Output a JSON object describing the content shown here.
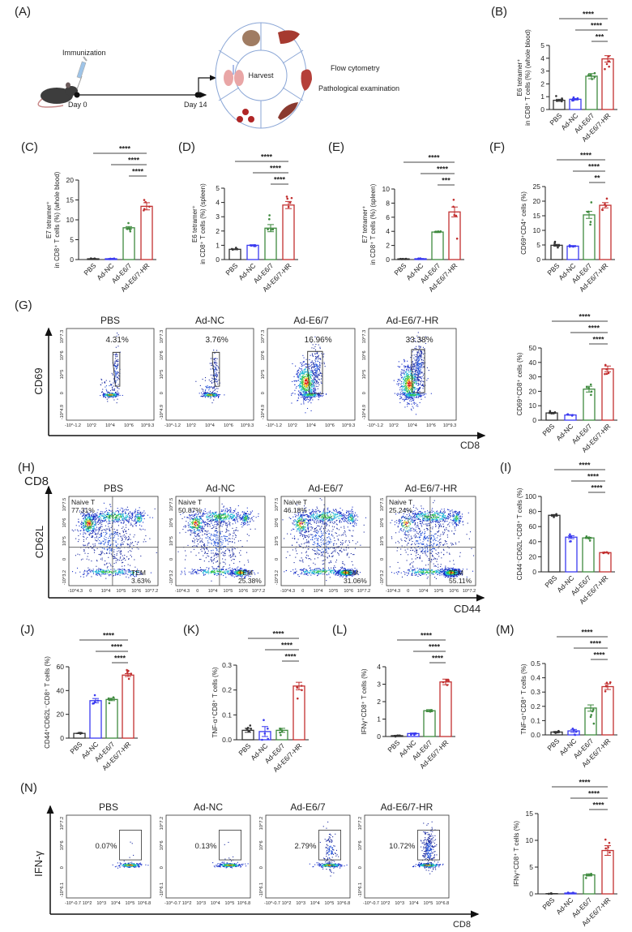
{
  "panel_labels": {
    "A": "(A)",
    "B": "(B)",
    "C": "(C)",
    "D": "(D)",
    "E": "(E)",
    "F": "(F)",
    "G": "(G)",
    "H": "(H)",
    "I": "(I)",
    "J": "(J)",
    "K": "(K)",
    "L": "(L)",
    "M": "(M)",
    "N": "(N)"
  },
  "schematic": {
    "immunization": "Immunization",
    "day0": "Day 0",
    "day14": "Day 14",
    "harvest": "Harvest",
    "outputs": [
      "Flow cytometry",
      "Pathological examination"
    ],
    "organ_icons": [
      "kidney-icon",
      "liver-icon",
      "heart-icon",
      "spleen-icon",
      "blood-drops-icon",
      "lung-icon",
      "mouse-icon",
      "syringe-icon"
    ]
  },
  "colors": {
    "PBS": "#333333",
    "Ad-NC": "#3a3af0",
    "Ad-E6/7": "#3f8a3f",
    "Ad-E6/7-HR": "#c23030"
  },
  "flow": {
    "G": {
      "ylabel": "CD69",
      "xlabel": "CD8",
      "titles": [
        "PBS",
        "Ad-NC",
        "Ad-E6/7",
        "Ad-E6/7-HR"
      ],
      "percents": [
        "4.31%",
        "3.76%",
        "16.96%",
        "33.38%"
      ],
      "xticks": [
        "-10^-1.2",
        "10^2",
        "10^4",
        "10^6",
        "10^9.3"
      ],
      "yticks": [
        "-10^4.9",
        "0",
        "10^5",
        "10^6",
        "10^7.3"
      ]
    },
    "H": {
      "top_label": "CD8",
      "ylabel": "CD62L",
      "xlabel": "CD44",
      "titles": [
        "PBS",
        "Ad-NC",
        "Ad-E6/7",
        "Ad-E6/7-HR"
      ],
      "naive_label": "Naive T",
      "tem_label": "TEM",
      "naive_percents": [
        "77.31%",
        "50.87%",
        "46.18%",
        "25.24%"
      ],
      "tem_percents": [
        "3.63%",
        "25.38%",
        "31.06%",
        "55.11%"
      ],
      "xticks": [
        "-10^4.3",
        "0",
        "10^4",
        "10^5",
        "10^6",
        "10^7.2"
      ],
      "yticks": [
        "-10^3.2",
        "0",
        "10^5",
        "10^6",
        "10^7.5"
      ]
    },
    "N": {
      "ylabel": "IFN-γ",
      "xlabel": "CD8",
      "titles": [
        "PBS",
        "Ad-NC",
        "Ad-E6/7",
        "Ad-E6/7-HR"
      ],
      "percents": [
        "0.07%",
        "0.13%",
        "2.79%",
        "10.72%"
      ],
      "xticks": [
        "-10^-0.7",
        "10^2",
        "10^3",
        "10^4",
        "10^5",
        "10^6.8"
      ],
      "yticks": [
        "-10^6.1",
        "0",
        "10^6",
        "10^7.2"
      ]
    }
  },
  "chart_data": [
    {
      "panel": "B",
      "type": "bar",
      "ylabel": [
        "E6 tetramer⁺",
        "in CD8⁺ T cells (%) (whole blood)"
      ],
      "ylim": [
        0,
        5
      ],
      "yticks": [
        "0",
        "1",
        "2",
        "3",
        "4",
        "5"
      ],
      "categories": [
        "PBS",
        "Ad-NC",
        "Ad-E6/7",
        "Ad-E6/7-HR"
      ],
      "values": [
        0.72,
        0.8,
        2.6,
        3.95
      ],
      "sem": [
        0.08,
        0.06,
        0.2,
        0.25
      ],
      "significance": [
        {
          "from": 0,
          "to": 3,
          "label": "****"
        },
        {
          "from": 1,
          "to": 3,
          "label": "****"
        },
        {
          "from": 2,
          "to": 3,
          "label": "***"
        }
      ]
    },
    {
      "panel": "C",
      "type": "bar",
      "ylabel": [
        "E7 tetramer⁺",
        "in CD8⁺ T cells (%) (whole blood)"
      ],
      "ylim": [
        0,
        20
      ],
      "yticks": [
        "0",
        "5",
        "10",
        "15",
        "20"
      ],
      "categories": [
        "PBS",
        "Ad-NC",
        "Ad-E6/7",
        "Ad-E6/7-HR"
      ],
      "values": [
        0.2,
        0.2,
        8.0,
        13.4
      ],
      "sem": [
        0.05,
        0.05,
        0.3,
        0.9
      ],
      "significance": [
        {
          "from": 0,
          "to": 3,
          "label": "****"
        },
        {
          "from": 1,
          "to": 3,
          "label": "****"
        },
        {
          "from": 2,
          "to": 3,
          "label": "****"
        }
      ]
    },
    {
      "panel": "D",
      "type": "bar",
      "ylabel": [
        "E6 tetramer⁺",
        "in CD8⁺ T cells (%) (spleen)"
      ],
      "ylim": [
        0,
        5
      ],
      "yticks": [
        "0",
        "1",
        "2",
        "3",
        "4",
        "5"
      ],
      "categories": [
        "PBS",
        "Ad-NC",
        "Ad-E6/7",
        "Ad-E6/7-HR"
      ],
      "values": [
        0.72,
        1.0,
        2.2,
        3.82
      ],
      "sem": [
        0.03,
        0.04,
        0.25,
        0.25
      ],
      "significance": [
        {
          "from": 0,
          "to": 3,
          "label": "****"
        },
        {
          "from": 1,
          "to": 3,
          "label": "****"
        },
        {
          "from": 2,
          "to": 3,
          "label": "****"
        }
      ]
    },
    {
      "panel": "E",
      "type": "bar",
      "ylabel": [
        "E7 tetramer⁺",
        "in CD8⁺ T cells (%) (spleen)"
      ],
      "ylim": [
        0,
        10
      ],
      "yticks": [
        "0",
        "2",
        "4",
        "6",
        "8",
        "10"
      ],
      "categories": [
        "PBS",
        "Ad-NC",
        "Ad-E6/7",
        "Ad-E6/7-HR"
      ],
      "values": [
        0.1,
        0.12,
        3.9,
        6.75
      ],
      "sem": [
        0.02,
        0.03,
        0.08,
        0.7
      ],
      "significance": [
        {
          "from": 0,
          "to": 3,
          "label": "****"
        },
        {
          "from": 1,
          "to": 3,
          "label": "****"
        },
        {
          "from": 2,
          "to": 3,
          "label": "***"
        }
      ]
    },
    {
      "panel": "F",
      "type": "bar",
      "ylabel": [
        "CD69⁺CD4⁺ cells (%)"
      ],
      "ylim": [
        0,
        25
      ],
      "yticks": [
        "0",
        "5",
        "10",
        "15",
        "20",
        "25"
      ],
      "categories": [
        "PBS",
        "Ad-NC",
        "Ad-E6/7",
        "Ad-E6/7-HR"
      ],
      "values": [
        4.9,
        4.6,
        15.3,
        18.6
      ],
      "sem": [
        0.3,
        0.2,
        1.2,
        0.9
      ],
      "significance": [
        {
          "from": 0,
          "to": 3,
          "label": "****"
        },
        {
          "from": 1,
          "to": 3,
          "label": "****"
        },
        {
          "from": 2,
          "to": 3,
          "label": "**"
        }
      ]
    },
    {
      "panel": "G",
      "type": "bar",
      "ylabel": [
        "CD69⁺CD8⁺ cells (%)"
      ],
      "ylim": [
        0,
        50
      ],
      "yticks": [
        "0",
        "10",
        "20",
        "30",
        "40",
        "50"
      ],
      "categories": [
        "PBS",
        "Ad-NC",
        "Ad-E6/7",
        "Ad-E6/7-HR"
      ],
      "values": [
        5.0,
        3.6,
        21.5,
        35.5
      ],
      "sem": [
        0.4,
        0.2,
        2.0,
        2.0
      ],
      "significance": [
        {
          "from": 0,
          "to": 3,
          "label": "****"
        },
        {
          "from": 1,
          "to": 3,
          "label": "****"
        },
        {
          "from": 2,
          "to": 3,
          "label": "****"
        }
      ]
    },
    {
      "panel": "I",
      "type": "bar",
      "ylabel": [
        "CD44⁻CD62L⁺CD8⁺ T cells (%)"
      ],
      "ylim": [
        0,
        100
      ],
      "yticks": [
        "0",
        "20",
        "40",
        "60",
        "80",
        "100"
      ],
      "categories": [
        "PBS",
        "Ad-NC",
        "Ad-E6/7",
        "Ad-E6/7-HR"
      ],
      "values": [
        75,
        46,
        45,
        25.5
      ],
      "sem": [
        1.0,
        2.0,
        0.8,
        0.5
      ],
      "significance": [
        {
          "from": 0,
          "to": 3,
          "label": "****"
        },
        {
          "from": 1,
          "to": 3,
          "label": "****"
        },
        {
          "from": 2,
          "to": 3,
          "label": "****"
        }
      ]
    },
    {
      "panel": "J",
      "type": "bar",
      "ylabel": [
        "CD44⁺CD62L⁻CD8⁺ T cells (%)"
      ],
      "ylim": [
        0,
        60
      ],
      "yticks": [
        "0",
        "20",
        "40",
        "60"
      ],
      "categories": [
        "PBS",
        "Ad-NC",
        "Ad-E6/7",
        "Ad-E6/7-HR"
      ],
      "values": [
        4,
        31.5,
        32.5,
        53
      ],
      "sem": [
        0.2,
        1.8,
        1.0,
        1.2
      ],
      "significance": [
        {
          "from": 0,
          "to": 3,
          "label": "****"
        },
        {
          "from": 1,
          "to": 3,
          "label": "****"
        },
        {
          "from": 2,
          "to": 3,
          "label": "****"
        }
      ]
    },
    {
      "panel": "K",
      "type": "bar",
      "ylabel": [
        "TNF-α⁺CD8⁺ T cells (%)"
      ],
      "ylim": [
        0,
        0.3
      ],
      "yticks": [
        "0.0",
        "0.1",
        "0.2",
        "0.3"
      ],
      "categories": [
        "PBS",
        "Ad-NC",
        "Ad-E6/7",
        "Ad-E6/7-HR"
      ],
      "values": [
        0.038,
        0.033,
        0.038,
        0.216
      ],
      "sem": [
        0.008,
        0.02,
        0.008,
        0.015
      ],
      "significance": [
        {
          "from": 0,
          "to": 3,
          "label": "****"
        },
        {
          "from": 1,
          "to": 3,
          "label": "****"
        },
        {
          "from": 2,
          "to": 3,
          "label": "****"
        }
      ]
    },
    {
      "panel": "L",
      "type": "bar",
      "ylabel": [
        "IFNγ⁺CD8⁺ T cells (%)"
      ],
      "ylim": [
        0,
        4
      ],
      "yticks": [
        "0",
        "1",
        "2",
        "3",
        "4"
      ],
      "categories": [
        "PBS",
        "Ad-NC",
        "Ad-E6/7",
        "Ad-E6/7-HR"
      ],
      "values": [
        0.05,
        0.17,
        1.48,
        3.13
      ],
      "sem": [
        0.02,
        0.03,
        0.06,
        0.16
      ],
      "significance": [
        {
          "from": 0,
          "to": 3,
          "label": "****"
        },
        {
          "from": 1,
          "to": 3,
          "label": "****"
        },
        {
          "from": 2,
          "to": 3,
          "label": "****"
        }
      ]
    },
    {
      "panel": "M",
      "type": "bar",
      "ylabel": [
        "TNF-α⁺CD8⁺ T cells (%)"
      ],
      "ylim": [
        0,
        0.5
      ],
      "yticks": [
        "0.0",
        "0.1",
        "0.2",
        "0.3",
        "0.4",
        "0.5"
      ],
      "categories": [
        "PBS",
        "Ad-NC",
        "Ad-E6/7",
        "Ad-E6/7-HR"
      ],
      "values": [
        0.02,
        0.028,
        0.188,
        0.338
      ],
      "sem": [
        0.004,
        0.01,
        0.022,
        0.02
      ],
      "significance": [
        {
          "from": 0,
          "to": 3,
          "label": "****"
        },
        {
          "from": 1,
          "to": 3,
          "label": "****"
        },
        {
          "from": 2,
          "to": 3,
          "label": "****"
        }
      ]
    },
    {
      "panel": "N",
      "type": "bar",
      "ylabel": [
        "IFNγ⁺CD8⁺ T cells (%)"
      ],
      "ylim": [
        0,
        15
      ],
      "yticks": [
        "0",
        "5",
        "10",
        "15"
      ],
      "categories": [
        "PBS",
        "Ad-NC",
        "Ad-E6/7",
        "Ad-E6/7-HR"
      ],
      "values": [
        0.05,
        0.15,
        3.55,
        8.1
      ],
      "sem": [
        0.02,
        0.03,
        0.2,
        0.9
      ],
      "significance": [
        {
          "from": 0,
          "to": 3,
          "label": "****"
        },
        {
          "from": 1,
          "to": 3,
          "label": "****"
        },
        {
          "from": 2,
          "to": 3,
          "label": "****"
        }
      ]
    }
  ]
}
